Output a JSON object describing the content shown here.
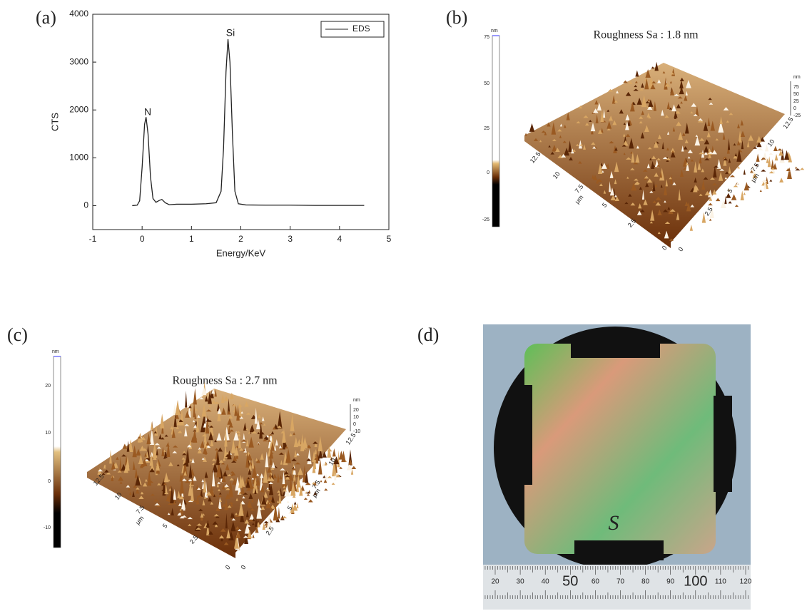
{
  "chart_data": {
    "type": "line",
    "label": "(a)",
    "xlabel": "Energy/KeV",
    "ylabel": "CTS",
    "x": [
      -0.2,
      -0.1,
      -0.05,
      0,
      0.05,
      0.08,
      0.12,
      0.17,
      0.22,
      0.28,
      0.35,
      0.4,
      0.47,
      0.55,
      0.7,
      1.0,
      1.3,
      1.5,
      1.6,
      1.65,
      1.7,
      1.74,
      1.78,
      1.83,
      1.88,
      1.95,
      2.1,
      2.5,
      3,
      3.5,
      4,
      4.5
    ],
    "series": [
      {
        "name": "EDS",
        "color": "#222222",
        "values": [
          0,
          10,
          100,
          800,
          1700,
          1850,
          1500,
          600,
          150,
          70,
          110,
          130,
          60,
          20,
          30,
          30,
          40,
          60,
          300,
          1200,
          2800,
          3480,
          3000,
          1500,
          300,
          40,
          15,
          10,
          10,
          5,
          5,
          5
        ]
      }
    ],
    "annotations": [
      "N",
      "Si"
    ],
    "xlim": [
      -1,
      5
    ],
    "xticks": [
      -1,
      0,
      1,
      2,
      3,
      4,
      5
    ],
    "ylim": [
      -500,
      4000
    ],
    "yticks": [
      0,
      1000,
      2000,
      3000,
      4000
    ],
    "legend": "top-right"
  },
  "afm": [
    {
      "label": "(b)",
      "title": "Roughness Sa : 1.8 nm",
      "colorbar": {
        "unit": "nm",
        "ticks": [
          75,
          50,
          25,
          0,
          -25
        ]
      },
      "x_axis": {
        "ticks": [
          "12.5",
          "10",
          "7.5",
          "5",
          "2.5",
          "0"
        ],
        "unit": "μm"
      },
      "y_axis": {
        "ticks": [
          "0",
          "2.5",
          "5",
          "7.5",
          "10",
          "12.5"
        ],
        "unit": "μm"
      },
      "z_axis": {
        "unit": "nm",
        "ticks": [
          75,
          50,
          25,
          0,
          -25
        ]
      }
    },
    {
      "label": "(c)",
      "title": "Roughness Sa : 2.7 nm",
      "colorbar": {
        "unit": "nm",
        "ticks": [
          20,
          10,
          0,
          -10
        ]
      },
      "x_axis": {
        "ticks": [
          "12.5",
          "10",
          "7.5",
          "5",
          "2.5",
          "0"
        ],
        "unit": "μm"
      },
      "y_axis": {
        "ticks": [
          "0",
          "2.5",
          "5",
          "7.5",
          "10",
          "12.5"
        ],
        "unit": "μm"
      },
      "z_axis": {
        "unit": "nm",
        "ticks": [
          20,
          10,
          0,
          -10
        ]
      }
    }
  ],
  "photo": {
    "label": "(d)",
    "mark": "S",
    "ruler": [
      20,
      30,
      40,
      50,
      60,
      70,
      80,
      90,
      100,
      110,
      120
    ]
  }
}
